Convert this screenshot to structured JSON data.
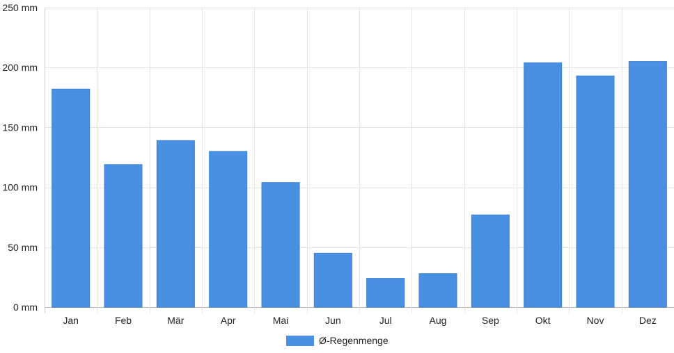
{
  "chart_data": {
    "type": "bar",
    "categories": [
      "Jan",
      "Feb",
      "Mär",
      "Apr",
      "Mai",
      "Jun",
      "Jul",
      "Aug",
      "Sep",
      "Okt",
      "Nov",
      "Dez"
    ],
    "series": [
      {
        "name": "Ø-Regenmenge",
        "values": [
          182,
          119,
          139,
          130,
          104,
          45,
          24,
          28,
          77,
          204,
          193,
          205
        ],
        "color": "#4a90e2"
      }
    ],
    "ylim": [
      0,
      250
    ],
    "yticks": [
      0,
      50,
      100,
      150,
      200,
      250
    ],
    "y_tick_labels": [
      "0 mm",
      "50 mm",
      "100 mm",
      "150 mm",
      "200 mm",
      "250 mm"
    ],
    "grid": true,
    "legend_position": "bottom-center"
  }
}
